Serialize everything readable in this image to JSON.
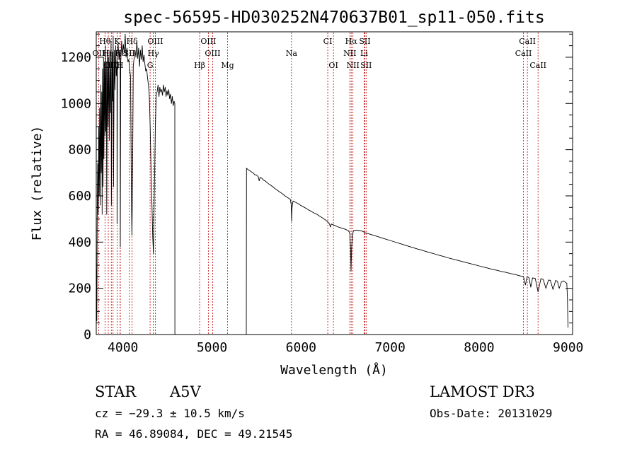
{
  "chart_data": {
    "type": "line",
    "title": "spec-56595-HD030252N470637B01_sp11-050.fits",
    "xlabel": "Wavelength (Å)",
    "ylabel": "Flux (relative)",
    "xlim": [
      3700,
      9050
    ],
    "ylim": [
      0,
      1310
    ],
    "xticks": [
      4000,
      5000,
      6000,
      7000,
      8000,
      9000
    ],
    "xtick_labels": [
      "4000",
      "5000",
      "6000",
      "7000",
      "8000",
      "9000"
    ],
    "xminor_step": 200,
    "yticks": [
      0,
      200,
      400,
      600,
      800,
      1000,
      1200
    ],
    "ytick_labels": [
      "0",
      "200",
      "400",
      "600",
      "800",
      "1000",
      "1200"
    ],
    "yminor_step": 50,
    "line_color": "#000000",
    "marker_color": "#c00000",
    "series": [
      {
        "name": "flux",
        "points": [
          [
            3700,
            10
          ],
          [
            3703,
            280
          ],
          [
            3706,
            60
          ],
          [
            3710,
            480
          ],
          [
            3716,
            740
          ],
          [
            3722,
            520
          ],
          [
            3728,
            900
          ],
          [
            3733,
            600
          ],
          [
            3738,
            980
          ],
          [
            3744,
            560
          ],
          [
            3750,
            1080
          ],
          [
            3756,
            700
          ],
          [
            3762,
            1050
          ],
          [
            3766,
            520
          ],
          [
            3771,
            1150
          ],
          [
            3776,
            640
          ],
          [
            3782,
            1200
          ],
          [
            3786,
            760
          ],
          [
            3792,
            1180
          ],
          [
            3798,
            860
          ],
          [
            3803,
            1250
          ],
          [
            3808,
            880
          ],
          [
            3814,
            1180
          ],
          [
            3818,
            520
          ],
          [
            3825,
            1230
          ],
          [
            3832,
            900
          ],
          [
            3838,
            1200
          ],
          [
            3846,
            840
          ],
          [
            3852,
            1230
          ],
          [
            3860,
            960
          ],
          [
            3866,
            1270
          ],
          [
            3870,
            560
          ],
          [
            3878,
            1220
          ],
          [
            3884,
            1010
          ],
          [
            3890,
            1290
          ],
          [
            3894,
            640
          ],
          [
            3902,
            1230
          ],
          [
            3910,
            1060
          ],
          [
            3918,
            1250
          ],
          [
            3925,
            1120
          ],
          [
            3933,
            1160
          ],
          [
            3934,
            480
          ],
          [
            3938,
            1200
          ],
          [
            3946,
            1260
          ],
          [
            3955,
            1190
          ],
          [
            3962,
            1230
          ],
          [
            3969,
            1150
          ],
          [
            3970,
            380
          ],
          [
            3975,
            1180
          ],
          [
            3985,
            1270
          ],
          [
            3995,
            1210
          ],
          [
            4005,
            1255
          ],
          [
            4015,
            1220
          ],
          [
            4025,
            1300
          ],
          [
            4035,
            1200
          ],
          [
            4045,
            1240
          ],
          [
            4055,
            1180
          ],
          [
            4065,
            1190
          ],
          [
            4075,
            1150
          ],
          [
            4085,
            1120
          ],
          [
            4095,
            600
          ],
          [
            4101,
            430
          ],
          [
            4108,
            680
          ],
          [
            4116,
            1160
          ],
          [
            4126,
            1200
          ],
          [
            4136,
            1230
          ],
          [
            4146,
            1200
          ],
          [
            4156,
            1270
          ],
          [
            4166,
            1195
          ],
          [
            4176,
            1240
          ],
          [
            4186,
            1160
          ],
          [
            4196,
            1230
          ],
          [
            4206,
            1190
          ],
          [
            4216,
            1250
          ],
          [
            4226,
            1180
          ],
          [
            4236,
            1210
          ],
          [
            4246,
            1170
          ],
          [
            4256,
            1140
          ],
          [
            4266,
            1150
          ],
          [
            4276,
            1110
          ],
          [
            4286,
            1080
          ],
          [
            4296,
            1030
          ],
          [
            4306,
            900
          ],
          [
            4316,
            700
          ],
          [
            4326,
            560
          ],
          [
            4334,
            420
          ],
          [
            4342,
            350
          ],
          [
            4348,
            500
          ],
          [
            4356,
            700
          ],
          [
            4364,
            900
          ],
          [
            4374,
            1040
          ],
          [
            4384,
            1050
          ],
          [
            4394,
            1080
          ],
          [
            4404,
            1030
          ],
          [
            4414,
            1070
          ],
          [
            4424,
            1050
          ],
          [
            4434,
            1060
          ],
          [
            4444,
            1035
          ],
          [
            4454,
            1080
          ],
          [
            4464,
            1050
          ],
          [
            4474,
            1070
          ],
          [
            4484,
            1030
          ],
          [
            4494,
            1055
          ],
          [
            4504,
            1035
          ],
          [
            4514,
            1060
          ],
          [
            4524,
            1020
          ],
          [
            4534,
            1040
          ],
          [
            4544,
            1000
          ],
          [
            4554,
            1030
          ],
          [
            4564,
            990
          ],
          [
            4574,
            1010
          ],
          [
            4582,
            1000
          ],
          [
            4583,
            0
          ],
          [
            5385,
            0
          ],
          [
            5388,
            720
          ],
          [
            5400,
            715
          ],
          [
            5420,
            710
          ],
          [
            5440,
            705
          ],
          [
            5460,
            700
          ],
          [
            5480,
            692
          ],
          [
            5500,
            690
          ],
          [
            5520,
            683
          ],
          [
            5530,
            665
          ],
          [
            5540,
            680
          ],
          [
            5560,
            676
          ],
          [
            5580,
            668
          ],
          [
            5600,
            664
          ],
          [
            5620,
            657
          ],
          [
            5640,
            651
          ],
          [
            5660,
            646
          ],
          [
            5680,
            640
          ],
          [
            5700,
            634
          ],
          [
            5720,
            628
          ],
          [
            5740,
            623
          ],
          [
            5760,
            617
          ],
          [
            5780,
            612
          ],
          [
            5800,
            606
          ],
          [
            5820,
            600
          ],
          [
            5840,
            595
          ],
          [
            5860,
            590
          ],
          [
            5880,
            585
          ],
          [
            5890,
            560
          ],
          [
            5894,
            490
          ],
          [
            5898,
            545
          ],
          [
            5910,
            578
          ],
          [
            5940,
            572
          ],
          [
            5970,
            566
          ],
          [
            6000,
            558
          ],
          [
            6030,
            552
          ],
          [
            6060,
            545
          ],
          [
            6090,
            538
          ],
          [
            6120,
            532
          ],
          [
            6150,
            525
          ],
          [
            6180,
            520
          ],
          [
            6210,
            512
          ],
          [
            6240,
            505
          ],
          [
            6270,
            497
          ],
          [
            6300,
            488
          ],
          [
            6320,
            478
          ],
          [
            6330,
            465
          ],
          [
            6340,
            478
          ],
          [
            6380,
            472
          ],
          [
            6420,
            465
          ],
          [
            6460,
            460
          ],
          [
            6500,
            455
          ],
          [
            6530,
            450
          ],
          [
            6548,
            438
          ],
          [
            6556,
            370
          ],
          [
            6562,
            275
          ],
          [
            6568,
            370
          ],
          [
            6576,
            430
          ],
          [
            6590,
            450
          ],
          [
            6620,
            452
          ],
          [
            6650,
            450
          ],
          [
            6680,
            448
          ],
          [
            6700,
            445
          ],
          [
            6720,
            440
          ],
          [
            6760,
            436
          ],
          [
            6800,
            431
          ],
          [
            6850,
            425
          ],
          [
            6900,
            419
          ],
          [
            6950,
            413
          ],
          [
            7000,
            407
          ],
          [
            7050,
            401
          ],
          [
            7100,
            395
          ],
          [
            7150,
            389
          ],
          [
            7200,
            383
          ],
          [
            7250,
            377
          ],
          [
            7300,
            371
          ],
          [
            7350,
            366
          ],
          [
            7400,
            360
          ],
          [
            7450,
            354
          ],
          [
            7500,
            349
          ],
          [
            7550,
            343
          ],
          [
            7600,
            338
          ],
          [
            7650,
            332
          ],
          [
            7700,
            327
          ],
          [
            7750,
            322
          ],
          [
            7800,
            317
          ],
          [
            7850,
            312
          ],
          [
            7900,
            307
          ],
          [
            7950,
            302
          ],
          [
            8000,
            297
          ],
          [
            8050,
            292
          ],
          [
            8100,
            287
          ],
          [
            8150,
            282
          ],
          [
            8200,
            278
          ],
          [
            8250,
            273
          ],
          [
            8300,
            269
          ],
          [
            8350,
            264
          ],
          [
            8400,
            260
          ],
          [
            8450,
            255
          ],
          [
            8480,
            252
          ],
          [
            8500,
            249
          ],
          [
            8520,
            215
          ],
          [
            8540,
            250
          ],
          [
            8560,
            246
          ],
          [
            8580,
            205
          ],
          [
            8600,
            245
          ],
          [
            8630,
            243
          ],
          [
            8662,
            185
          ],
          [
            8695,
            242
          ],
          [
            8720,
            238
          ],
          [
            8750,
            200
          ],
          [
            8780,
            236
          ],
          [
            8800,
            234
          ],
          [
            8830,
            195
          ],
          [
            8860,
            234
          ],
          [
            8880,
            230
          ],
          [
            8900,
            200
          ],
          [
            8925,
            228
          ],
          [
            8950,
            232
          ],
          [
            8970,
            226
          ],
          [
            8985,
            222
          ],
          [
            8992,
            160
          ],
          [
            8998,
            30
          ]
        ]
      }
    ],
    "spectral_lines": [
      {
        "label": "Hθ",
        "wavelength": 3798,
        "row": 1
      },
      {
        "label": "K",
        "wavelength": 3934,
        "row": 1
      },
      {
        "label": "Hδ",
        "wavelength": 4102,
        "row": 1
      },
      {
        "label": "OIII",
        "wavelength": 4363,
        "row": 1
      },
      {
        "label": "OIII",
        "wavelength": 4959,
        "row": 1
      },
      {
        "label": "CI",
        "wavelength": 6300,
        "row": 1
      },
      {
        "label": "Hα",
        "wavelength": 6563,
        "row": 1
      },
      {
        "label": "SII",
        "wavelength": 6717,
        "row": 1
      },
      {
        "label": "CaII",
        "wavelength": 8542,
        "row": 1
      },
      {
        "label": "OII",
        "wavelength": 3727,
        "row": 2
      },
      {
        "label": "Hη",
        "wavelength": 3835,
        "row": 2
      },
      {
        "label": "Hε",
        "wavelength": 3970,
        "row": 2
      },
      {
        "label": "SII",
        "wavelength": 4072,
        "row": 2
      },
      {
        "label": "Hγ",
        "wavelength": 4341,
        "row": 2
      },
      {
        "label": "OIII",
        "wavelength": 5007,
        "row": 2
      },
      {
        "label": "Na",
        "wavelength": 5893,
        "row": 2
      },
      {
        "label": "NII",
        "wavelength": 6548,
        "row": 2
      },
      {
        "label": "Li",
        "wavelength": 6708,
        "row": 2
      },
      {
        "label": "CaII",
        "wavelength": 8498,
        "row": 2
      },
      {
        "label": "OIII",
        "wavelength": 3869,
        "row": 3
      },
      {
        "label": "Hζ",
        "wavelength": 3889,
        "row": 3
      },
      {
        "label": "H",
        "wavelength": 3968,
        "row": 3
      },
      {
        "label": "G",
        "wavelength": 4305,
        "row": 3
      },
      {
        "label": "Hβ",
        "wavelength": 4861,
        "row": 3
      },
      {
        "label": "Mg",
        "wavelength": 5175,
        "row": 3
      },
      {
        "label": "OI",
        "wavelength": 6364,
        "row": 3
      },
      {
        "label": "NII",
        "wavelength": 6583,
        "row": 3
      },
      {
        "label": "SII",
        "wavelength": 6731,
        "row": 3
      },
      {
        "label": "CaII",
        "wavelength": 8662,
        "row": 3
      }
    ]
  },
  "info": {
    "object_class": "STAR",
    "subclass": "A5V",
    "survey": "LAMOST DR3",
    "redshift": "cz = −29.3 ± 10.5 km/s",
    "obs_date": "Obs-Date: 20131029",
    "coordinates": "RA =  46.89084, DEC =  49.21545"
  }
}
